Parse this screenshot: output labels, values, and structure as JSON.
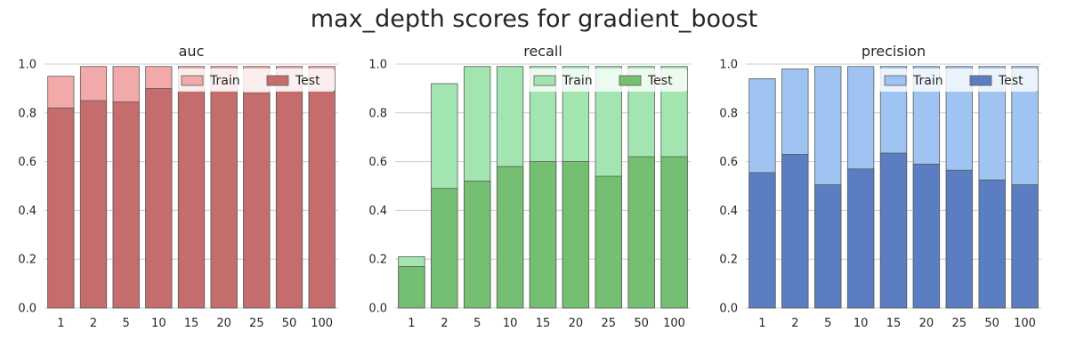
{
  "suptitle": "max_depth scores for gradient_boost",
  "chart_data": [
    {
      "type": "bar",
      "title": "auc",
      "categories": [
        "1",
        "2",
        "5",
        "10",
        "15",
        "20",
        "25",
        "50",
        "100"
      ],
      "ylim": [
        0,
        1.0
      ],
      "yticks": [
        "0.0",
        "0.2",
        "0.4",
        "0.6",
        "0.8",
        "1.0"
      ],
      "grid": true,
      "legend": "top-right",
      "series": [
        {
          "name": "Train",
          "color": "#f1a9a9",
          "values": [
            0.95,
            0.99,
            0.99,
            0.99,
            0.99,
            0.99,
            0.99,
            0.99,
            0.99
          ]
        },
        {
          "name": "Test",
          "color": "#c56d6d",
          "values": [
            0.82,
            0.85,
            0.845,
            0.9,
            0.89,
            0.89,
            0.88,
            0.89,
            0.89
          ]
        }
      ]
    },
    {
      "type": "bar",
      "title": "recall",
      "categories": [
        "1",
        "2",
        "5",
        "10",
        "15",
        "20",
        "25",
        "50",
        "100"
      ],
      "ylim": [
        0,
        1.0
      ],
      "yticks": [
        "0.0",
        "0.2",
        "0.4",
        "0.6",
        "0.8",
        "1.0"
      ],
      "grid": true,
      "legend": "top-right",
      "series": [
        {
          "name": "Train",
          "color": "#a3e5b1",
          "values": [
            0.21,
            0.92,
            0.99,
            0.99,
            0.99,
            0.99,
            0.99,
            0.99,
            0.99
          ]
        },
        {
          "name": "Test",
          "color": "#75bf72",
          "values": [
            0.17,
            0.49,
            0.52,
            0.58,
            0.6,
            0.6,
            0.54,
            0.62,
            0.62
          ]
        }
      ]
    },
    {
      "type": "bar",
      "title": "precision",
      "categories": [
        "1",
        "2",
        "5",
        "10",
        "15",
        "20",
        "25",
        "50",
        "100"
      ],
      "ylim": [
        0,
        1.0
      ],
      "yticks": [
        "0.0",
        "0.2",
        "0.4",
        "0.6",
        "0.8",
        "1.0"
      ],
      "grid": true,
      "legend": "top-right",
      "series": [
        {
          "name": "Train",
          "color": "#a0c4f1",
          "values": [
            0.94,
            0.98,
            0.99,
            0.99,
            0.99,
            0.99,
            0.99,
            0.99,
            0.99
          ]
        },
        {
          "name": "Test",
          "color": "#5b7dc1",
          "values": [
            0.555,
            0.63,
            0.505,
            0.57,
            0.635,
            0.59,
            0.565,
            0.525,
            0.505
          ]
        }
      ]
    }
  ]
}
